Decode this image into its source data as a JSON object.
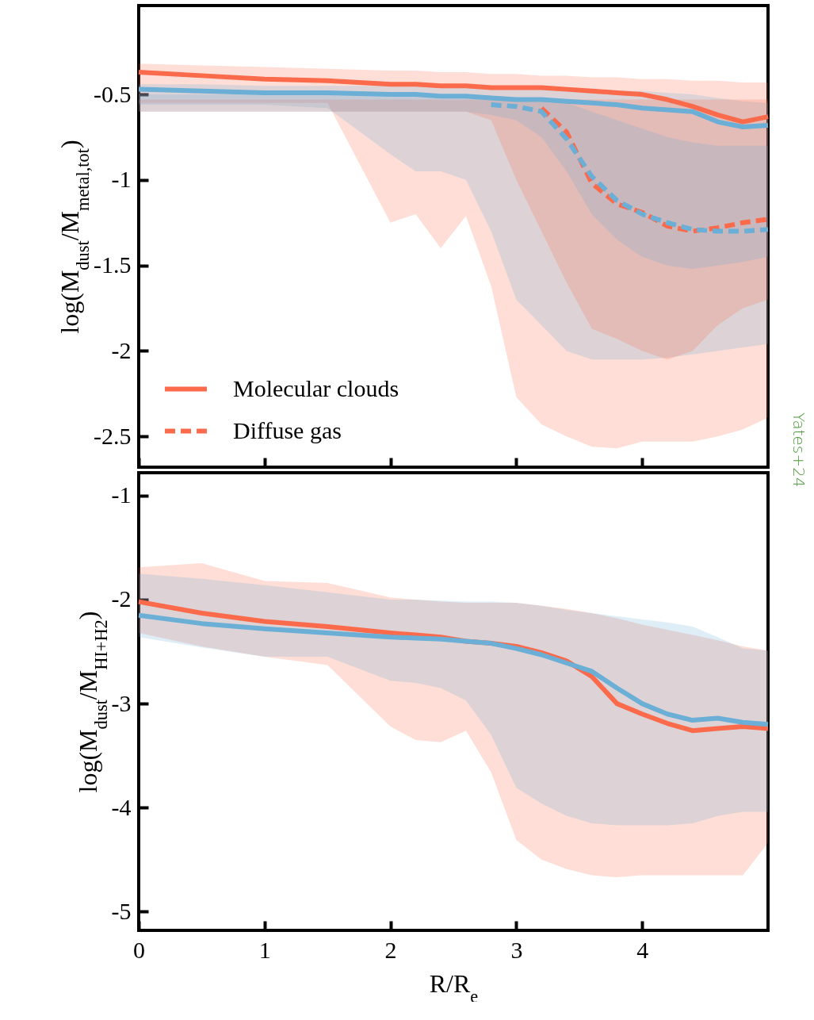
{
  "chart_data": [
    {
      "type": "line",
      "ylabel": "log(M$_{dust}$/M$_{metal,tot}$)",
      "xlim": [
        0,
        5
      ],
      "xticks": [
        0,
        1,
        2,
        3,
        4
      ],
      "ylim": [
        -2.68,
        0.02
      ],
      "yticks": [
        -0.5,
        -1,
        -1.5,
        -2,
        -2.5
      ],
      "tick_labels": "y",
      "legend": "bottom left",
      "grid": false,
      "x": [
        0,
        0.5,
        1,
        1.5,
        2,
        2.2,
        2.4,
        2.6,
        2.8,
        3,
        3.2,
        3.4,
        3.6,
        3.8,
        4,
        4.2,
        4.4,
        4.6,
        4.8,
        5
      ],
      "series": [
        {
          "name": "Molecular clouds",
          "color": "#fb6a4a",
          "line_style": "solid",
          "values": [
            -0.37,
            -0.39,
            -0.41,
            -0.42,
            -0.44,
            -0.44,
            -0.45,
            -0.45,
            -0.46,
            -0.46,
            -0.46,
            -0.47,
            -0.48,
            -0.49,
            -0.5,
            -0.53,
            -0.57,
            -0.62,
            -0.66,
            -0.63
          ],
          "upper": [
            -0.32,
            -0.33,
            -0.34,
            -0.35,
            -0.36,
            -0.36,
            -0.37,
            -0.37,
            -0.38,
            -0.38,
            -0.39,
            -0.39,
            -0.4,
            -0.4,
            -0.41,
            -0.41,
            -0.42,
            -0.42,
            -0.43,
            -0.43
          ],
          "lower": [
            -0.55,
            -0.55,
            -0.55,
            -0.55,
            -1.25,
            -1.2,
            -1.4,
            -1.21,
            -1.62,
            -2.27,
            -2.43,
            -2.5,
            -2.56,
            -2.57,
            -2.53,
            -2.53,
            -2.53,
            -2.5,
            -2.46,
            -2.39
          ]
        },
        {
          "color": "#6baed6",
          "line_style": "solid",
          "values": [
            -0.47,
            -0.48,
            -0.49,
            -0.49,
            -0.5,
            -0.5,
            -0.51,
            -0.51,
            -0.52,
            -0.53,
            -0.53,
            -0.54,
            -0.55,
            -0.56,
            -0.58,
            -0.59,
            -0.6,
            -0.66,
            -0.69,
            -0.68
          ],
          "upper": [
            -0.44,
            -0.44,
            -0.45,
            -0.45,
            -0.45,
            -0.45,
            -0.46,
            -0.46,
            -0.46,
            -0.46,
            -0.47,
            -0.47,
            -0.47,
            -0.48,
            -0.48,
            -0.49,
            -0.5,
            -0.52,
            -0.54,
            -0.55
          ],
          "lower": [
            -0.56,
            -0.56,
            -0.56,
            -0.58,
            -0.85,
            -0.95,
            -0.95,
            -1.0,
            -1.3,
            -1.7,
            -1.85,
            -2.0,
            -2.05,
            -2.05,
            -2.05,
            -2.04,
            -2.02,
            -2.0,
            -1.98,
            -1.96
          ]
        },
        {
          "name": "Diffuse gas",
          "color": "#fb6a4a",
          "line_style": "dashed",
          "values": [
            null,
            null,
            null,
            null,
            null,
            null,
            null,
            null,
            null,
            null,
            -0.58,
            -0.72,
            -1.02,
            -1.14,
            -1.19,
            -1.27,
            -1.3,
            -1.28,
            -1.25,
            -1.23
          ],
          "upper": [
            -0.53,
            -0.53,
            -0.53,
            -0.53,
            -0.53,
            -0.53,
            -0.53,
            -0.53,
            -0.53,
            -0.53,
            -0.53,
            -0.53,
            -0.53,
            -0.53,
            -0.53,
            -0.53,
            -0.53,
            -0.53,
            -0.53,
            -0.53
          ],
          "lower": [
            -0.6,
            -0.6,
            -0.6,
            -0.6,
            -0.6,
            -0.6,
            -0.6,
            -0.6,
            -0.65,
            -1.0,
            -1.3,
            -1.6,
            -1.87,
            -1.93,
            -2.0,
            -2.05,
            -2.0,
            -1.85,
            -1.75,
            -1.7
          ]
        },
        {
          "color": "#6baed6",
          "line_style": "dashed",
          "values": [
            null,
            null,
            null,
            null,
            null,
            null,
            null,
            null,
            -0.56,
            -0.57,
            -0.6,
            -0.76,
            -0.98,
            -1.12,
            -1.2,
            -1.25,
            -1.29,
            -1.3,
            -1.3,
            -1.29
          ],
          "upper": [
            -0.5,
            -0.5,
            -0.5,
            -0.5,
            -0.5,
            -0.5,
            -0.5,
            -0.5,
            -0.52,
            -0.52,
            -0.53,
            -0.55,
            -0.6,
            -0.65,
            -0.7,
            -0.75,
            -0.78,
            -0.8,
            -0.8,
            -0.8
          ],
          "lower": [
            -0.6,
            -0.6,
            -0.6,
            -0.6,
            -0.6,
            -0.6,
            -0.6,
            -0.6,
            -0.62,
            -0.65,
            -0.75,
            -0.95,
            -1.2,
            -1.35,
            -1.45,
            -1.5,
            -1.52,
            -1.5,
            -1.48,
            -1.45
          ]
        }
      ],
      "annotations": [
        "Yates+24"
      ]
    },
    {
      "type": "line",
      "ylabel": "log(M$_{dust}$/M$_{HI+H2}$)",
      "xlabel": "R/R$_{e}$",
      "xlim": [
        0,
        5
      ],
      "xticks": [
        0,
        1,
        2,
        3,
        4
      ],
      "ylim": [
        -5.18,
        -0.78
      ],
      "yticks": [
        -1,
        -2,
        -3,
        -4,
        -5
      ],
      "grid": false,
      "x": [
        0,
        0.5,
        1,
        1.5,
        2,
        2.2,
        2.4,
        2.6,
        2.8,
        3,
        3.2,
        3.4,
        3.6,
        3.8,
        4,
        4.2,
        4.4,
        4.6,
        4.8,
        5
      ],
      "series": [
        {
          "color": "#fb6a4a",
          "line_style": "solid",
          "values": [
            -2.02,
            -2.13,
            -2.21,
            -2.26,
            -2.32,
            -2.34,
            -2.36,
            -2.4,
            -2.42,
            -2.45,
            -2.51,
            -2.59,
            -2.74,
            -3.0,
            -3.1,
            -3.19,
            -3.26,
            -3.24,
            -3.22,
            -3.24
          ],
          "upper": [
            -1.69,
            -1.65,
            -1.82,
            -1.84,
            -1.98,
            -2.0,
            -2.02,
            -2.03,
            -2.03,
            -2.03,
            -2.06,
            -2.09,
            -2.13,
            -2.18,
            -2.24,
            -2.29,
            -2.34,
            -2.39,
            -2.45,
            -2.49
          ],
          "lower": [
            -2.32,
            -2.45,
            -2.55,
            -2.63,
            -3.22,
            -3.35,
            -3.37,
            -3.26,
            -3.66,
            -4.31,
            -4.5,
            -4.59,
            -4.65,
            -4.67,
            -4.65,
            -4.65,
            -4.65,
            -4.65,
            -4.65,
            -4.34
          ]
        },
        {
          "color": "#6baed6",
          "line_style": "solid",
          "values": [
            -2.15,
            -2.23,
            -2.28,
            -2.32,
            -2.36,
            -2.37,
            -2.38,
            -2.4,
            -2.42,
            -2.47,
            -2.53,
            -2.61,
            -2.69,
            -2.85,
            -3.0,
            -3.1,
            -3.16,
            -3.14,
            -3.18,
            -3.2
          ],
          "upper": [
            -1.75,
            -1.8,
            -1.86,
            -1.93,
            -2.0,
            -2.0,
            -2.01,
            -2.02,
            -2.02,
            -2.03,
            -2.06,
            -2.1,
            -2.13,
            -2.16,
            -2.19,
            -2.22,
            -2.26,
            -2.36,
            -2.47,
            -2.49
          ],
          "lower": [
            -2.36,
            -2.46,
            -2.55,
            -2.55,
            -2.78,
            -2.8,
            -2.85,
            -2.97,
            -3.3,
            -3.81,
            -3.96,
            -4.08,
            -4.15,
            -4.17,
            -4.17,
            -4.17,
            -4.15,
            -4.08,
            -4.04,
            -4.04
          ]
        }
      ]
    }
  ]
}
